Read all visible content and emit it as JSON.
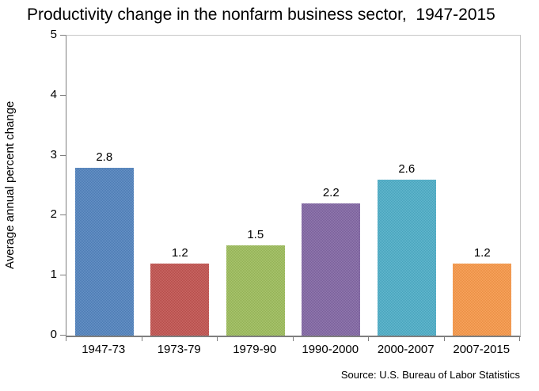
{
  "chart_data": {
    "type": "bar",
    "title": "Productivity change in the nonfarm business sector,  1947-2015",
    "ylabel": "Average annual percent change",
    "categories": [
      "1947-73",
      "1973-79",
      "1979-90",
      "1990-2000",
      "2000-2007",
      "2007-2015"
    ],
    "values": [
      2.8,
      1.2,
      1.5,
      2.2,
      2.6,
      1.2
    ],
    "value_labels": [
      "2.8",
      "1.2",
      "1.5",
      "2.2",
      "2.6",
      "1.2"
    ],
    "bar_colors": [
      "#4f81bd",
      "#c0504d",
      "#9bbb59",
      "#8064a2",
      "#4bacc6",
      "#f79646"
    ],
    "ylim": [
      0,
      5
    ],
    "yticks": [
      "0",
      "1",
      "2",
      "3",
      "4",
      "5"
    ],
    "grid": false,
    "legend_position": "none",
    "axis_color": "#7f7f7f",
    "border_color": "#c6c6c6",
    "source": "Source: U.S. Bureau of Labor Statistics"
  }
}
